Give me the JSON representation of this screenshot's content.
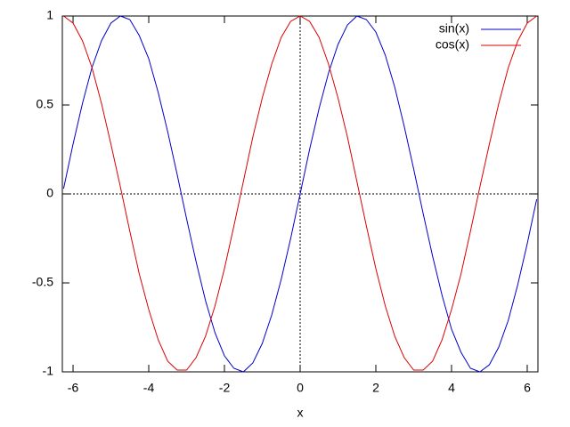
{
  "chart_data": {
    "type": "line",
    "xlabel": "x",
    "x": [
      -6.25,
      -6,
      -5.75,
      -5.5,
      -5.25,
      -5,
      -4.75,
      -4.5,
      -4.25,
      -4,
      -3.75,
      -3.5,
      -3.25,
      -3,
      -2.75,
      -2.5,
      -2.25,
      -2,
      -1.75,
      -1.5,
      -1.25,
      -1,
      -0.75,
      -0.5,
      -0.25,
      0,
      0.25,
      0.5,
      0.75,
      1,
      1.25,
      1.5,
      1.75,
      2,
      2.25,
      2.5,
      2.75,
      3,
      3.25,
      3.5,
      3.75,
      4,
      4.25,
      4.5,
      4.75,
      5,
      5.25,
      5.5,
      5.75,
      6,
      6.25
    ],
    "series": [
      {
        "name": "sin(x)",
        "color": "#0000cc",
        "values": [
          0.03,
          0.28,
          0.51,
          0.71,
          0.86,
          0.96,
          1.0,
          0.98,
          0.89,
          0.76,
          0.57,
          0.35,
          0.11,
          -0.14,
          -0.38,
          -0.6,
          -0.78,
          -0.91,
          -0.98,
          -1.0,
          -0.95,
          -0.84,
          -0.68,
          -0.48,
          -0.25,
          0,
          0.25,
          0.48,
          0.68,
          0.84,
          0.95,
          1.0,
          0.98,
          0.91,
          0.78,
          0.6,
          0.38,
          0.14,
          -0.11,
          -0.35,
          -0.57,
          -0.76,
          -0.89,
          -0.98,
          -1.0,
          -0.96,
          -0.86,
          -0.71,
          -0.51,
          -0.28,
          -0.03
        ]
      },
      {
        "name": "cos(x)",
        "color": "#dd0000",
        "values": [
          1.0,
          0.96,
          0.86,
          0.71,
          0.51,
          0.28,
          0.04,
          -0.21,
          -0.45,
          -0.65,
          -0.82,
          -0.94,
          -0.99,
          -0.99,
          -0.92,
          -0.8,
          -0.63,
          -0.42,
          -0.18,
          0.07,
          0.32,
          0.54,
          0.73,
          0.88,
          0.97,
          1,
          0.97,
          0.88,
          0.73,
          0.54,
          0.32,
          0.07,
          -0.18,
          -0.42,
          -0.63,
          -0.8,
          -0.92,
          -0.99,
          -0.99,
          -0.94,
          -0.82,
          -0.65,
          -0.45,
          -0.21,
          0.04,
          0.28,
          0.51,
          0.71,
          0.86,
          0.96,
          1.0
        ]
      }
    ],
    "xlim": [
      -6.283,
      6.283
    ],
    "ylim": [
      -1,
      1
    ],
    "xticks": [
      -6,
      -4,
      -2,
      0,
      2,
      4,
      6
    ],
    "yticks": [
      -1,
      -0.5,
      0,
      0.5,
      1
    ],
    "zeroaxis": true,
    "legend": "top-right"
  }
}
